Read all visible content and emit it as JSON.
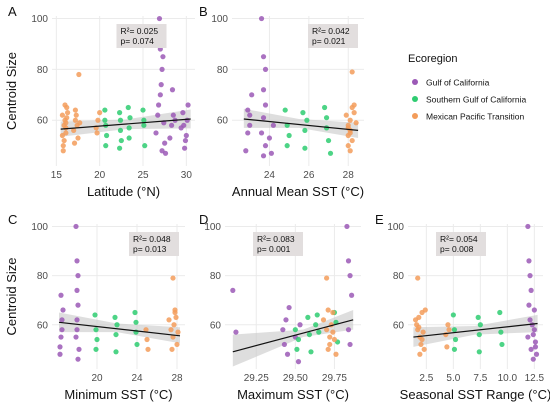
{
  "figure": {
    "legend": {
      "title": "Ecoregion",
      "entries": [
        {
          "label": "Gulf of California",
          "color": "#9b59b6"
        },
        {
          "label": "Southern Gulf of California",
          "color": "#2ecc71"
        },
        {
          "label": "Mexican Pacific Transition",
          "color": "#f39c5a"
        }
      ]
    },
    "colors": {
      "panel_bg": "#ffffff",
      "grid": "#ebebeb",
      "ribbon": "#c8c8c8",
      "fit_line": "#111111",
      "stat_box": "#e2dede"
    }
  },
  "chart_data": [
    {
      "panel": "A",
      "type": "scatter",
      "xlabel": "Latitude (°N)",
      "ylabel": "Centroid Size",
      "xlim": [
        14.5,
        31
      ],
      "ylim": [
        42,
        101
      ],
      "xticks": [
        "15",
        "20",
        "25",
        "30"
      ],
      "xtick_values": [
        15,
        20,
        25,
        30
      ],
      "yticks": [
        "60",
        "80",
        "100"
      ],
      "ytick_values": [
        60,
        80,
        100
      ],
      "stats": {
        "r2": "R²= 0.025",
        "p": "p= 0.074"
      },
      "stat_pos": "top-center",
      "fit": {
        "x": [
          15.5,
          30.5
        ],
        "y": [
          56.5,
          60.5
        ],
        "ci": [
          [
            15.5,
            53.5,
            59.5
          ],
          [
            23,
            56.5,
            60.3
          ],
          [
            30.5,
            56.8,
            64.2
          ]
        ]
      },
      "series": [
        {
          "name": "Mexican Pacific Transition",
          "x": [
            15.7,
            15.9,
            16.1,
            16.2,
            15.8,
            16.0,
            16.3,
            15.9,
            16.1,
            15.8,
            16.2,
            16.0,
            15.7,
            16.1,
            17.0,
            17.3,
            17.2,
            17.1,
            17.4,
            17.2,
            17.6,
            17.5,
            17.7,
            19.6,
            19.8,
            19.7,
            20.0
          ],
          "y": [
            62,
            58,
            55,
            65,
            50,
            60,
            63,
            52,
            57,
            48,
            61,
            66,
            54,
            59,
            56,
            62,
            60,
            51,
            58,
            64,
            78,
            53,
            59,
            57,
            60,
            55,
            63
          ]
        },
        {
          "name": "Southern Gulf of California",
          "x": [
            20.6,
            20.7,
            20.8,
            20.6,
            20.7,
            22.3,
            22.4,
            22.5,
            22.4,
            22.3,
            23.3,
            23.4,
            23.5,
            23.4,
            25.0,
            25.1,
            25.2,
            25.1
          ],
          "y": [
            64,
            58,
            54,
            60,
            50,
            63,
            56,
            52,
            60,
            49,
            65,
            57,
            61,
            53,
            64,
            58,
            50,
            60
          ]
        },
        {
          "name": "Gulf of California",
          "x": [
            26.5,
            26.7,
            26.8,
            27.0,
            27.1,
            27.2,
            27.3,
            27.0,
            26.9,
            27.4,
            27.5,
            27.6,
            27.2,
            28.1,
            28.3,
            28.5,
            28.7,
            28.4,
            29.4,
            29.6,
            29.8,
            30.0,
            30.1,
            30.2,
            29.9,
            29.7
          ],
          "y": [
            55,
            62,
            66,
            70,
            74,
            80,
            85,
            88,
            100,
            59,
            51,
            47,
            48,
            53,
            58,
            62,
            60,
            72,
            57,
            63,
            49,
            54,
            60,
            66,
            52,
            58
          ]
        }
      ]
    },
    {
      "panel": "B",
      "type": "scatter",
      "xlabel": "Annual Mean SST (°C)",
      "ylabel": "",
      "xlim": [
        22.1,
        28.8
      ],
      "ylim": [
        42,
        101
      ],
      "xticks": [
        "24",
        "26",
        "28"
      ],
      "xtick_values": [
        24,
        26,
        28
      ],
      "yticks": [
        "60",
        "80",
        "100"
      ],
      "ytick_values": [
        60,
        80,
        100
      ],
      "stats": {
        "r2": "R²= 0.042",
        "p": "p= 0.021"
      },
      "stat_pos": "top-right",
      "fit": {
        "x": [
          22.7,
          28.5
        ],
        "y": [
          60.5,
          56
        ],
        "ci": [
          [
            22.7,
            57,
            64.5
          ],
          [
            25.5,
            57,
            60.5
          ],
          [
            28.5,
            53,
            59
          ]
        ]
      },
      "series": [
        {
          "name": "Gulf of California",
          "x": [
            22.8,
            22.9,
            23.0,
            22.9,
            23.0,
            23.1,
            23.6,
            23.7,
            23.8,
            23.7,
            23.8,
            23.7,
            23.6,
            23.8,
            23.7,
            24.0,
            24.2,
            24.1
          ],
          "y": [
            48,
            55,
            62,
            64,
            58,
            70,
            100,
            85,
            80,
            72,
            66,
            61,
            55,
            50,
            46,
            53,
            58,
            47
          ]
        },
        {
          "name": "Southern Gulf of California",
          "x": [
            24.8,
            24.9,
            25.0,
            24.9,
            25.7,
            25.8,
            25.9,
            25.8,
            26.8,
            26.9,
            27.0,
            26.9,
            27.1
          ],
          "y": [
            64,
            58,
            54,
            50,
            63,
            56,
            60,
            49,
            65,
            57,
            52,
            61,
            47
          ]
        },
        {
          "name": "Mexican Pacific Transition",
          "x": [
            27.9,
            28.0,
            28.1,
            28.2,
            28.0,
            28.1,
            28.3,
            28.2,
            28.0,
            28.1,
            28.2,
            28.3,
            28.0,
            28.4,
            28.1
          ],
          "y": [
            62,
            58,
            55,
            65,
            50,
            60,
            63,
            52,
            57,
            48,
            79,
            66,
            54,
            59,
            56
          ]
        }
      ]
    },
    {
      "panel": "C",
      "type": "scatter",
      "xlabel": "Minimum SST (°C)",
      "ylabel": "Centroid Size",
      "xlim": [
        15.5,
        28.8
      ],
      "ylim": [
        42,
        101
      ],
      "xticks": [
        "20",
        "24",
        "28"
      ],
      "xtick_values": [
        20,
        24,
        28
      ],
      "yticks": [
        "60",
        "80",
        "100"
      ],
      "ytick_values": [
        60,
        80,
        100
      ],
      "stats": {
        "r2": "R²= 0.048",
        "p": "p= 0.013"
      },
      "stat_pos": "top-right",
      "fit": {
        "x": [
          16.2,
          28.3
        ],
        "y": [
          61,
          55.5
        ],
        "ci": [
          [
            16.2,
            57,
            65
          ],
          [
            22,
            57,
            60.5
          ],
          [
            28.3,
            52.5,
            59
          ]
        ]
      },
      "series": [
        {
          "name": "Gulf of California",
          "x": [
            16.3,
            16.4,
            16.5,
            16.6,
            16.4,
            16.5,
            16.3,
            17.9,
            18.0,
            18.1,
            18.0,
            18.1,
            18.0,
            17.9,
            18.2,
            18.1,
            18.0
          ],
          "y": [
            48,
            55,
            62,
            66,
            72,
            58,
            51,
            100,
            86,
            80,
            74,
            68,
            62,
            55,
            50,
            46,
            58
          ]
        },
        {
          "name": "Southern Gulf of California",
          "x": [
            19.8,
            19.9,
            20.0,
            19.9,
            21.8,
            21.9,
            22.0,
            21.9,
            23.8,
            23.9,
            24.0,
            23.9
          ],
          "y": [
            64,
            58,
            54,
            50,
            63,
            56,
            60,
            49,
            65,
            57,
            52,
            61
          ]
        },
        {
          "name": "Mexican Pacific Transition",
          "x": [
            24.9,
            25.0,
            25.1,
            27.2,
            27.4,
            27.6,
            27.8,
            27.5,
            27.7,
            27.9,
            28.0,
            27.6,
            27.8,
            28.1
          ],
          "y": [
            58,
            54,
            50,
            62,
            58,
            55,
            65,
            50,
            60,
            63,
            52,
            79,
            66,
            57
          ]
        }
      ]
    },
    {
      "panel": "D",
      "type": "scatter",
      "xlabel": "Maximum SST (°C)",
      "ylabel": "",
      "xlim": [
        29.05,
        29.92
      ],
      "ylim": [
        42,
        101
      ],
      "xticks": [
        "29.25",
        "29.50",
        "29.75"
      ],
      "xtick_values": [
        29.25,
        29.5,
        29.75
      ],
      "yticks": [
        "60",
        "80",
        "100"
      ],
      "ytick_values": [
        60,
        80,
        100
      ],
      "stats": {
        "r2": "R²= 0.083",
        "p": "p= 0.001"
      },
      "stat_pos": "top-left",
      "fit": {
        "x": [
          29.1,
          29.87
        ],
        "y": [
          49,
          62
        ],
        "ci": [
          [
            29.1,
            43,
            56
          ],
          [
            29.55,
            55,
            58
          ],
          [
            29.87,
            58,
            66
          ]
        ]
      },
      "series": [
        {
          "name": "Gulf of California",
          "x": [
            29.1,
            29.12,
            29.42,
            29.43,
            29.44,
            29.45,
            29.46,
            29.5,
            29.52,
            29.53,
            29.83,
            29.84,
            29.85,
            29.86,
            29.84,
            29.85
          ],
          "y": [
            74,
            57,
            58,
            52,
            62,
            48,
            67,
            55,
            45,
            60,
            100,
            86,
            80,
            72,
            58,
            52
          ]
        },
        {
          "name": "Southern Gulf of California",
          "x": [
            29.5,
            29.51,
            29.52,
            29.58,
            29.59,
            29.6,
            29.63,
            29.64,
            29.65,
            29.75,
            29.76,
            29.77
          ],
          "y": [
            58,
            50,
            54,
            63,
            56,
            49,
            60,
            64,
            57,
            65,
            61,
            53
          ]
        },
        {
          "name": "Mexican Pacific Transition",
          "x": [
            29.68,
            29.7,
            29.72,
            29.74,
            29.71,
            29.73,
            29.7,
            29.72,
            29.74,
            29.76,
            29.71,
            29.75
          ],
          "y": [
            62,
            58,
            55,
            65,
            50,
            60,
            79,
            52,
            57,
            48,
            66,
            54
          ]
        }
      ]
    },
    {
      "panel": "E",
      "type": "scatter",
      "xlabel": "Seasonal SST Range (°C)",
      "ylabel": "",
      "xlim": [
        0.8,
        13.3
      ],
      "ylim": [
        42,
        101
      ],
      "xticks": [
        "2.5",
        "5.0",
        "7.5",
        "10.0",
        "12.5"
      ],
      "xtick_values": [
        2.5,
        5,
        7.5,
        10,
        12.5
      ],
      "yticks": [
        "60",
        "80",
        "100"
      ],
      "ytick_values": [
        60,
        80,
        100
      ],
      "stats": {
        "r2": "R²= 0.054",
        "p": "p= 0.008"
      },
      "stat_pos": "top-left",
      "fit": {
        "x": [
          1.3,
          12.8
        ],
        "y": [
          55,
          60.5
        ],
        "ci": [
          [
            1.3,
            51,
            59
          ],
          [
            7,
            56,
            59.5
          ],
          [
            12.8,
            57,
            64
          ]
        ]
      },
      "series": [
        {
          "name": "Mexican Pacific Transition",
          "x": [
            1.5,
            1.7,
            1.9,
            2.1,
            2.3,
            1.6,
            1.8,
            2.0,
            2.2,
            1.9,
            2.4,
            1.7,
            2.1,
            1.8,
            4.3,
            4.5,
            4.4,
            4.6
          ],
          "y": [
            62,
            58,
            55,
            65,
            50,
            60,
            63,
            52,
            57,
            48,
            66,
            79,
            54,
            59,
            56,
            60,
            51,
            58
          ]
        },
        {
          "name": "Southern Gulf of California",
          "x": [
            5.0,
            5.1,
            5.2,
            5.1,
            7.3,
            7.4,
            7.5,
            7.4,
            9.3,
            9.4,
            9.5
          ],
          "y": [
            64,
            58,
            54,
            50,
            63,
            56,
            60,
            49,
            65,
            57,
            52
          ]
        },
        {
          "name": "Gulf of California",
          "x": [
            11.9,
            12.0,
            12.1,
            12.2,
            12.0,
            12.1,
            11.9,
            12.2,
            12.4,
            12.5,
            12.6,
            12.3,
            12.5,
            12.7,
            12.4,
            12.6
          ],
          "y": [
            100,
            86,
            80,
            74,
            68,
            62,
            55,
            50,
            46,
            58,
            53,
            60,
            66,
            48,
            56,
            51
          ]
        }
      ]
    }
  ]
}
